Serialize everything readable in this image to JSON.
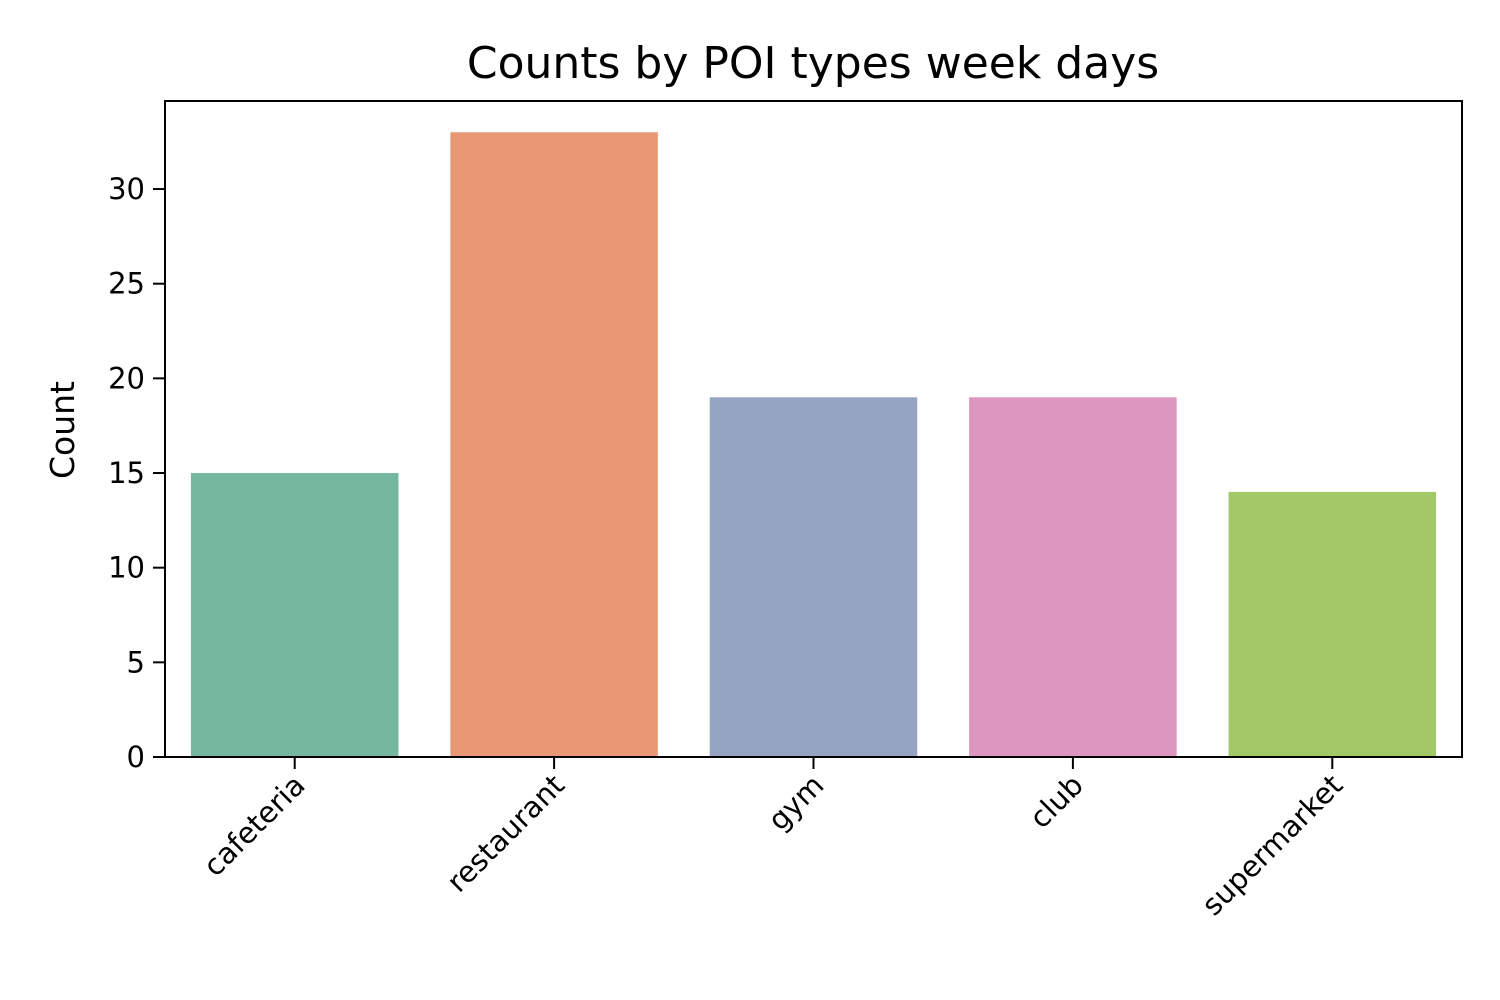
{
  "chart_data": {
    "type": "bar",
    "title": "Counts by POI types week days",
    "xlabel": "",
    "ylabel": "Count",
    "categories": [
      "cafeteria",
      "restaurant",
      "gym",
      "club",
      "supermarket"
    ],
    "values": [
      15,
      33,
      19,
      19,
      14
    ],
    "colors": [
      "#76b7a0",
      "#e99875",
      "#94a4c2",
      "#dc96c0",
      "#a2c868"
    ],
    "ylim": [
      0,
      34.65
    ],
    "yticks": [
      0,
      5,
      10,
      15,
      20,
      25,
      30
    ],
    "grid": false,
    "legend": "none"
  }
}
